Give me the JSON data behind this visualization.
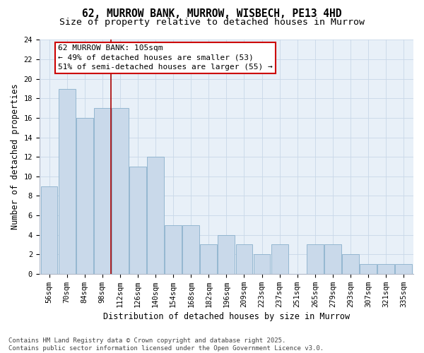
{
  "title1": "62, MURROW BANK, MURROW, WISBECH, PE13 4HD",
  "title2": "Size of property relative to detached houses in Murrow",
  "xlabel": "Distribution of detached houses by size in Murrow",
  "ylabel": "Number of detached properties",
  "categories": [
    "56sqm",
    "70sqm",
    "84sqm",
    "98sqm",
    "112sqm",
    "126sqm",
    "140sqm",
    "154sqm",
    "168sqm",
    "182sqm",
    "196sqm",
    "209sqm",
    "223sqm",
    "237sqm",
    "251sqm",
    "265sqm",
    "279sqm",
    "293sqm",
    "307sqm",
    "321sqm",
    "335sqm"
  ],
  "values": [
    9,
    19,
    16,
    17,
    17,
    11,
    12,
    5,
    5,
    3,
    4,
    3,
    2,
    3,
    0,
    3,
    3,
    2,
    1,
    1,
    1
  ],
  "bar_color": "#c9d9ea",
  "bar_edge_color": "#8ab0cc",
  "vline_x": 3.5,
  "vline_color": "#aa0000",
  "annotation_text": "62 MURROW BANK: 105sqm\n← 49% of detached houses are smaller (53)\n51% of semi-detached houses are larger (55) →",
  "annotation_box_facecolor": "#ffffff",
  "annotation_box_edgecolor": "#cc0000",
  "ylim": [
    0,
    24
  ],
  "yticks": [
    0,
    2,
    4,
    6,
    8,
    10,
    12,
    14,
    16,
    18,
    20,
    22,
    24
  ],
  "grid_color": "#c8d8e8",
  "background_color": "#e8f0f8",
  "footer": "Contains HM Land Registry data © Crown copyright and database right 2025.\nContains public sector information licensed under the Open Government Licence v3.0.",
  "title_fontsize": 10.5,
  "subtitle_fontsize": 9.5,
  "axis_label_fontsize": 8.5,
  "tick_fontsize": 7.5,
  "annotation_fontsize": 8,
  "footer_fontsize": 6.5
}
